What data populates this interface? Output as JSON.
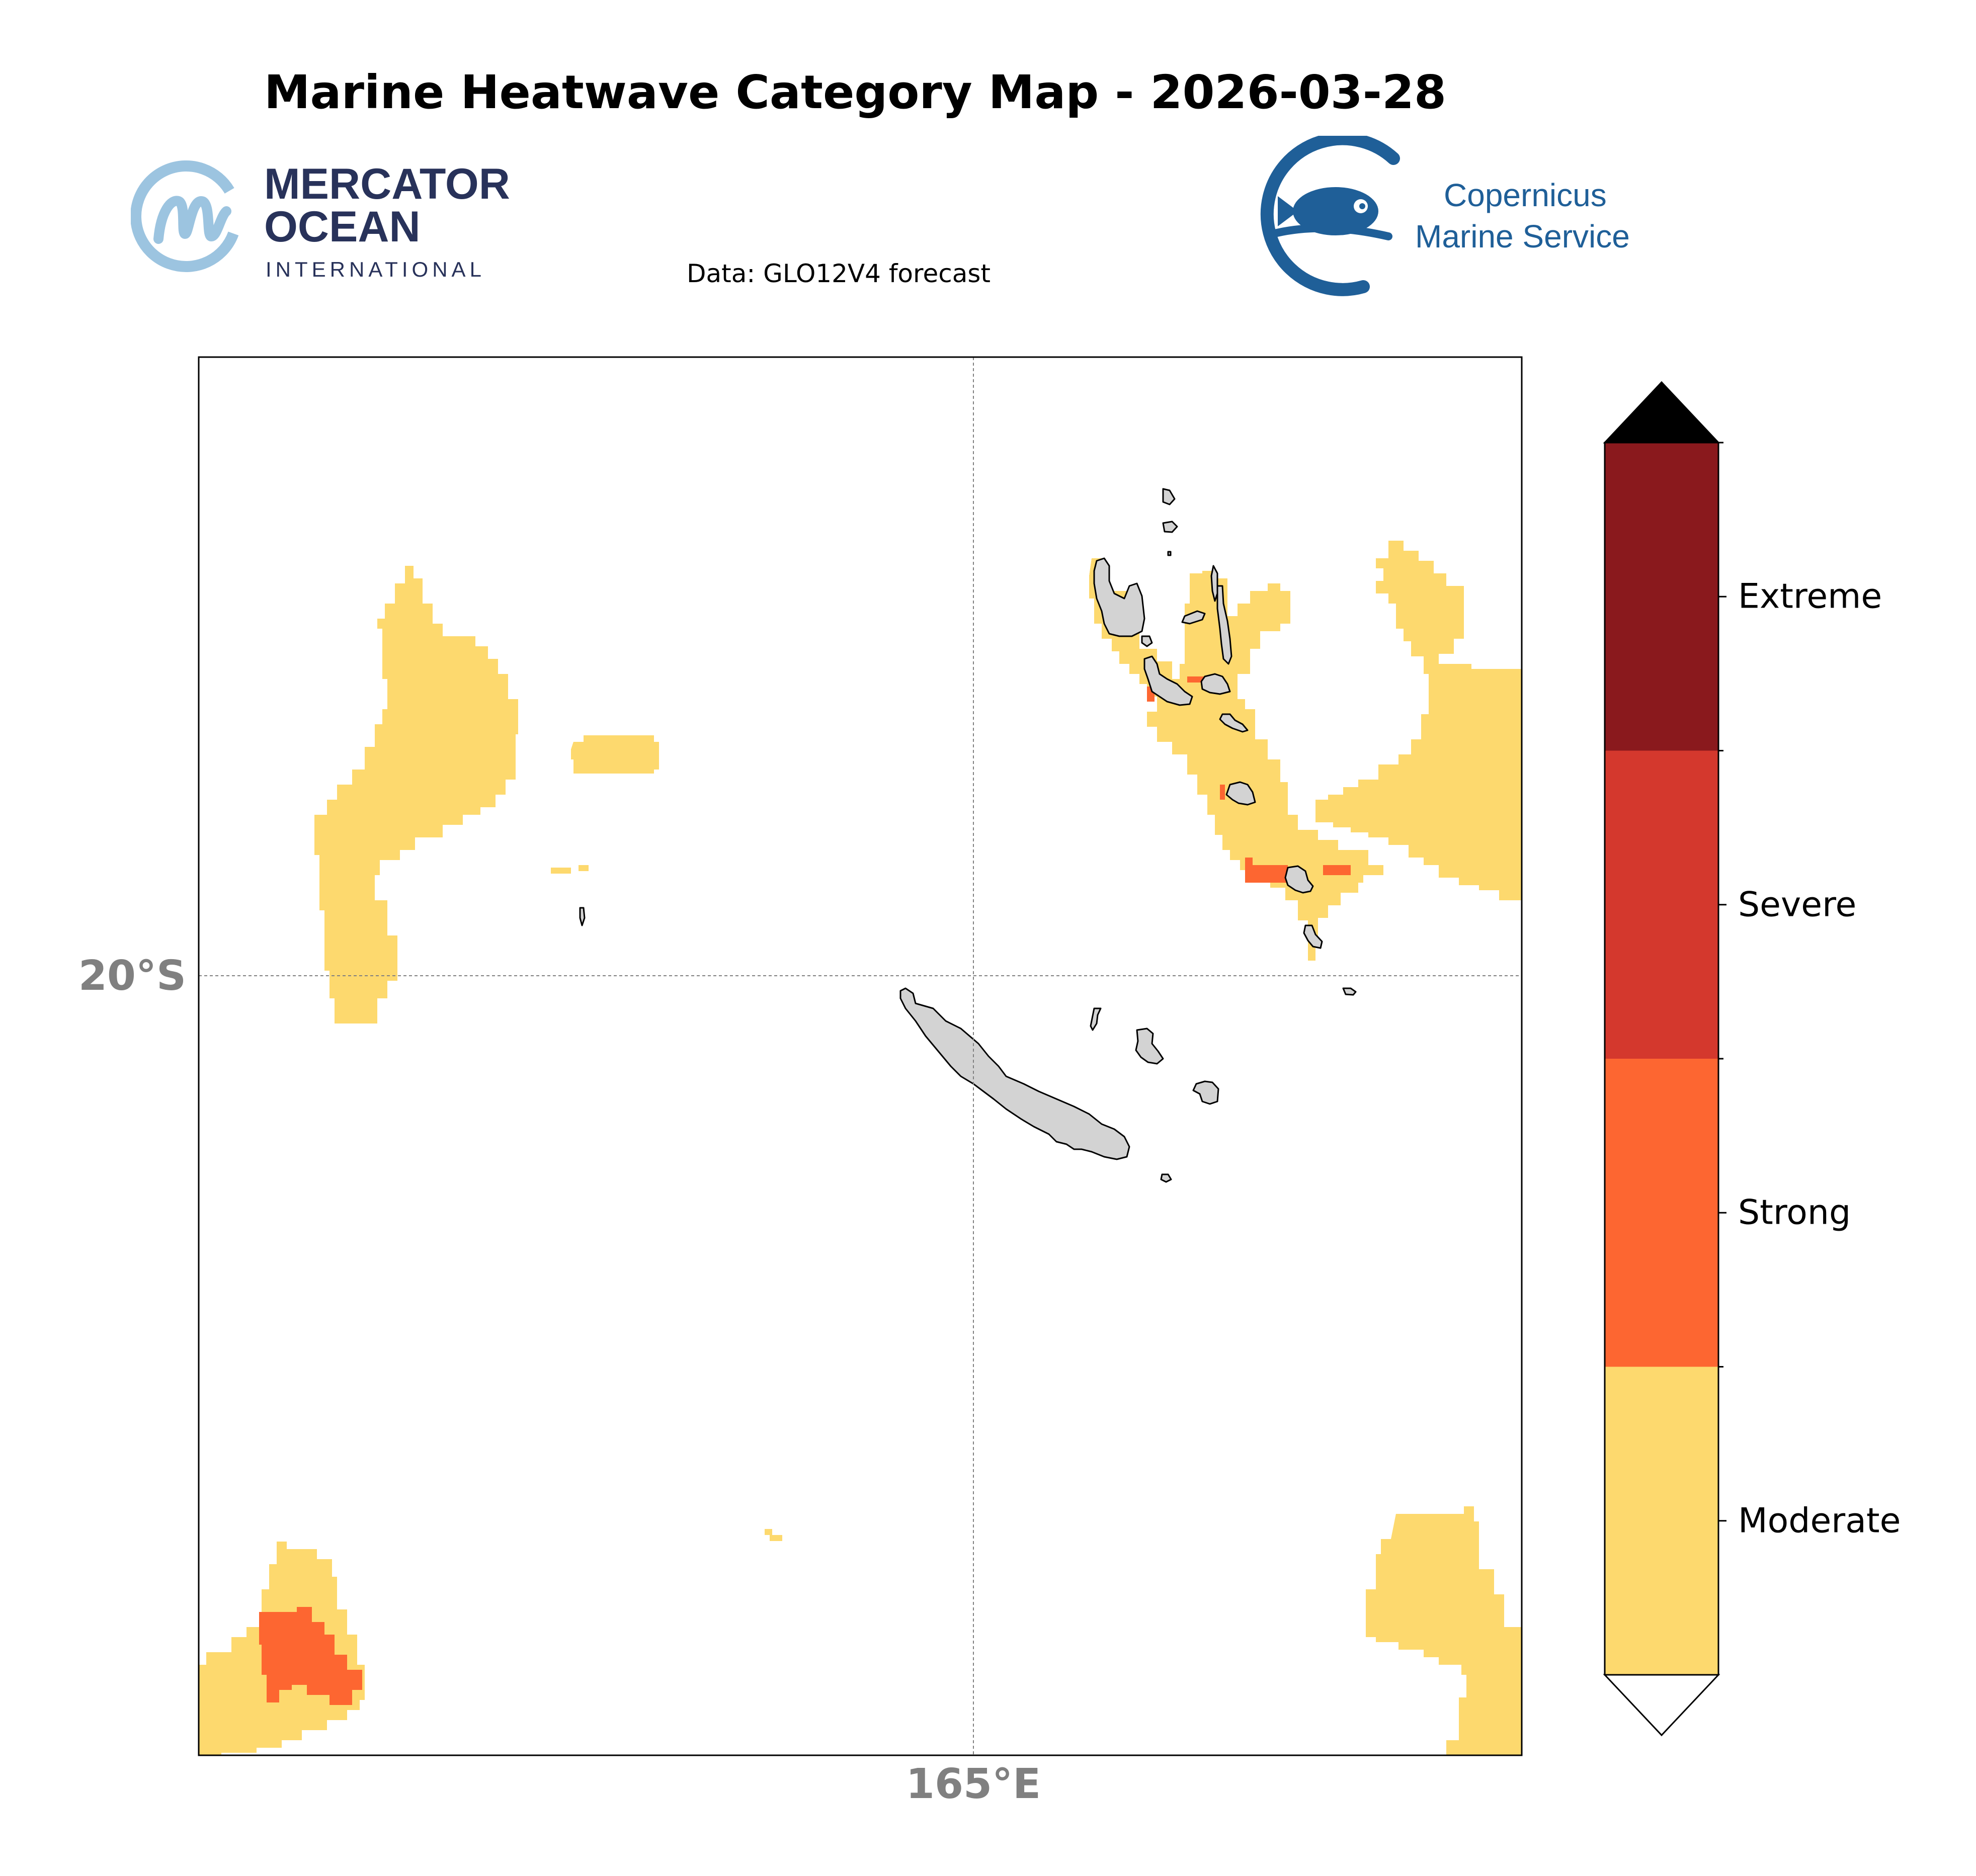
{
  "header": {
    "title": "Marine Heatwave Category Map - 2026-03-28",
    "subtitle": "Data: GLO12V4 forecast"
  },
  "logos": {
    "mercator": {
      "line1": "MERCATOR",
      "line2": "OCEAN",
      "line3": "INTERNATIONAL"
    },
    "copernicus": {
      "line1": "Copernicus",
      "line2": "Marine Service"
    }
  },
  "map": {
    "gridlines": {
      "longitude": "165°E",
      "latitude": "20°S"
    },
    "land_color": "#d3d3d3"
  },
  "legend": {
    "categories": [
      {
        "label": "Moderate",
        "color": "#fdd96e"
      },
      {
        "label": "Strong",
        "color": "#fd6631"
      },
      {
        "label": "Severe",
        "color": "#d4382d"
      },
      {
        "label": "Extreme",
        "color": "#8a191d"
      }
    ],
    "over_color": "#000000",
    "under_color": "#ffffff"
  }
}
